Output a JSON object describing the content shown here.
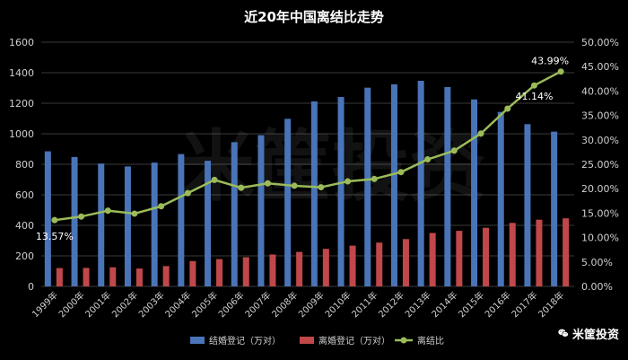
{
  "chart_data": {
    "type": "bar",
    "title": "近20年中国离结比走势",
    "categories": [
      "1999年",
      "2000年",
      "2001年",
      "2002年",
      "2003年",
      "2004年",
      "2005年",
      "2006年",
      "2007年",
      "2008年",
      "2009年",
      "2010年",
      "2011年",
      "2012年",
      "2013年",
      "2014年",
      "2015年",
      "2016年",
      "2017年",
      "2018年"
    ],
    "series": [
      {
        "name": "结婚登记（万对）",
        "type": "bar",
        "axis": "left",
        "color": "#4a74b8",
        "values": [
          885,
          848,
          805,
          786,
          811,
          867,
          823,
          945,
          991,
          1098,
          1212,
          1241,
          1302,
          1324,
          1347,
          1306,
          1225,
          1143,
          1063,
          1014
        ]
      },
      {
        "name": "离婚登记（万对）",
        "type": "bar",
        "axis": "left",
        "color": "#c0484a",
        "values": [
          120,
          121,
          125,
          117,
          133,
          166,
          179,
          191,
          209,
          226,
          246,
          267,
          287,
          310,
          350,
          364,
          384,
          416,
          437,
          446
        ]
      },
      {
        "name": "离结比",
        "type": "line",
        "axis": "right",
        "color": "#9bbb59",
        "values": [
          13.57,
          14.3,
          15.5,
          14.9,
          16.4,
          19.1,
          21.8,
          20.2,
          21.1,
          20.6,
          20.3,
          21.5,
          22.0,
          23.4,
          26.0,
          27.8,
          31.3,
          36.4,
          41.14,
          43.99
        ]
      }
    ],
    "y_left": {
      "min": 0,
      "max": 1600,
      "step": 200,
      "ticks": [
        "0",
        "200",
        "400",
        "600",
        "800",
        "1000",
        "1200",
        "1400",
        "1600"
      ]
    },
    "y_right": {
      "min": 0,
      "max": 50,
      "step": 5,
      "ticks": [
        "0.00%",
        "5.00%",
        "10.00%",
        "15.00%",
        "20.00%",
        "25.00%",
        "30.00%",
        "35.00%",
        "40.00%",
        "45.00%",
        "50.00%"
      ]
    },
    "line_labels": [
      {
        "index": 0,
        "text": "13.57%"
      },
      {
        "index": 18,
        "text": "41.14%"
      },
      {
        "index": 19,
        "text": "43.99%"
      }
    ],
    "grid": true,
    "legend_position": "bottom"
  },
  "watermark": {
    "text": "米筐投资"
  },
  "colors": {
    "background": "#000000",
    "grid": "#3a3a3a",
    "axis_text": "#cfcfcf"
  },
  "icons": {
    "brand": "wechat-icon"
  }
}
